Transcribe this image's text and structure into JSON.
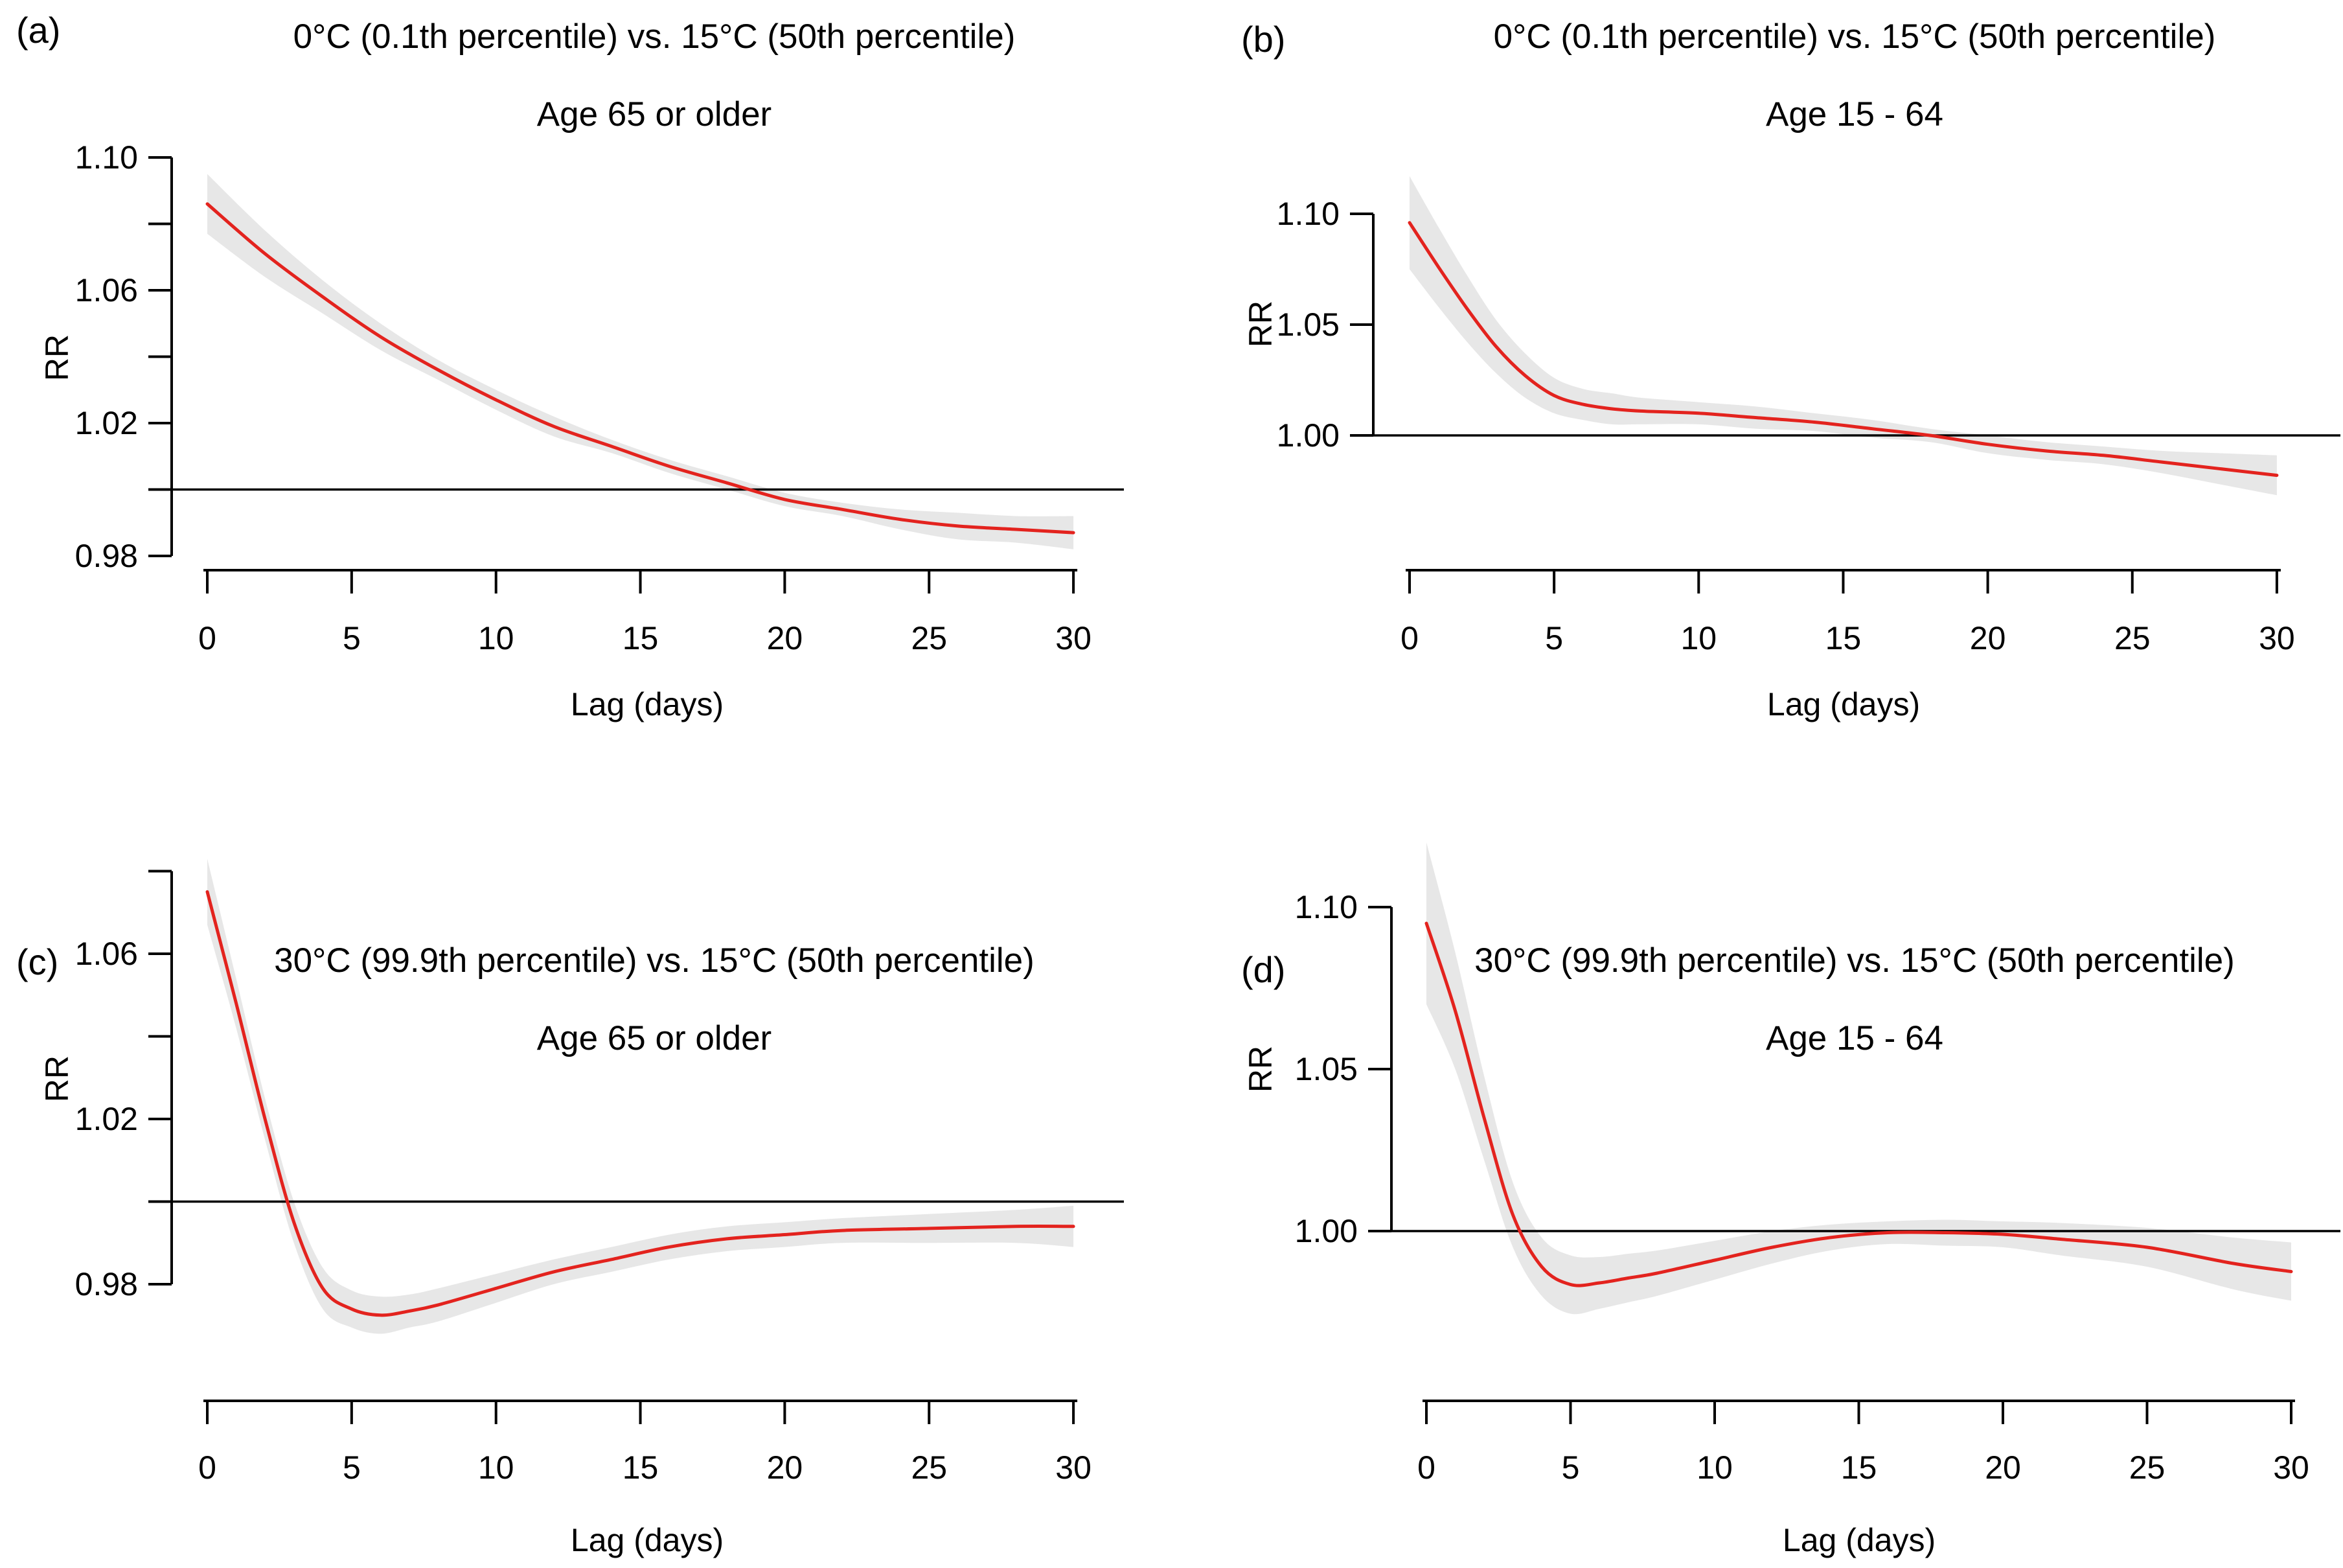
{
  "colors": {
    "curve": "#E3231E",
    "band": "#E7E7E7",
    "axis": "#000000",
    "ref_line": "#000000"
  },
  "chart_data": [
    {
      "id": "a",
      "panel_label": "(a)",
      "type": "line",
      "title": "0°C (0.1th percentile) vs. 15°C (50th percentile)",
      "subtitle": "Age 65 or older",
      "xlabel": "Lag (days)",
      "ylabel": "RR",
      "xlim": [
        0,
        30
      ],
      "x_ticks": [
        0,
        5,
        10,
        15,
        20,
        25,
        30
      ],
      "y_axis_range": [
        0.98,
        1.1
      ],
      "y_ticks": [
        {
          "v": 0.98,
          "label": "0.98"
        },
        {
          "v": 1.0,
          "label": ""
        },
        {
          "v": 1.02,
          "label": "1.02"
        },
        {
          "v": 1.04,
          "label": ""
        },
        {
          "v": 1.06,
          "label": "1.06"
        },
        {
          "v": 1.08,
          "label": ""
        },
        {
          "v": 1.1,
          "label": "1.10"
        }
      ],
      "ref_line": 1.0,
      "legend": "none",
      "x": [
        0,
        2,
        4,
        6,
        8,
        10,
        12,
        14,
        16,
        18,
        20,
        22,
        24,
        26,
        28,
        30
      ],
      "series": [
        {
          "name": "RR estimate",
          "values": [
            1.086,
            1.071,
            1.058,
            1.046,
            1.036,
            1.027,
            1.019,
            1.013,
            1.007,
            1.002,
            0.997,
            0.994,
            0.991,
            0.989,
            0.988,
            0.987
          ]
        },
        {
          "name": "CI upper",
          "values": [
            1.095,
            1.078,
            1.063,
            1.05,
            1.039,
            1.03,
            1.022,
            1.015,
            1.009,
            1.004,
            0.999,
            0.996,
            0.994,
            0.993,
            0.992,
            0.992
          ]
        },
        {
          "name": "CI lower",
          "values": [
            1.077,
            1.064,
            1.053,
            1.042,
            1.033,
            1.024,
            1.016,
            1.011,
            1.005,
            1.0,
            0.995,
            0.992,
            0.988,
            0.985,
            0.984,
            0.982
          ]
        }
      ]
    },
    {
      "id": "b",
      "panel_label": "(b)",
      "type": "line",
      "title": "0°C (0.1th percentile) vs. 15°C (50th percentile)",
      "subtitle": "Age 15 - 64",
      "xlabel": "Lag (days)",
      "ylabel": "RR",
      "xlim": [
        0,
        30
      ],
      "x_ticks": [
        0,
        5,
        10,
        15,
        20,
        25,
        30
      ],
      "y_axis_range": [
        1.0,
        1.1
      ],
      "y_ticks": [
        {
          "v": 1.0,
          "label": "1.00"
        },
        {
          "v": 1.05,
          "label": "1.05"
        },
        {
          "v": 1.1,
          "label": "1.10"
        }
      ],
      "ref_line": 1.0,
      "legend": "none",
      "x": [
        0,
        1,
        2,
        3,
        4,
        5,
        6,
        7,
        8,
        10,
        12,
        14,
        16,
        18,
        20,
        22,
        24,
        26,
        28,
        30
      ],
      "series": [
        {
          "name": "RR estimate",
          "values": [
            1.096,
            1.076,
            1.057,
            1.04,
            1.027,
            1.018,
            1.014,
            1.012,
            1.011,
            1.01,
            1.008,
            1.006,
            1.003,
            1.0,
            0.996,
            0.993,
            0.991,
            0.988,
            0.985,
            0.982
          ]
        },
        {
          "name": "CI upper",
          "values": [
            1.117,
            1.094,
            1.072,
            1.052,
            1.037,
            1.026,
            1.021,
            1.019,
            1.017,
            1.015,
            1.013,
            1.01,
            1.007,
            1.003,
            1.0,
            0.997,
            0.995,
            0.993,
            0.992,
            0.991
          ]
        },
        {
          "name": "CI lower",
          "values": [
            1.075,
            1.058,
            1.042,
            1.028,
            1.017,
            1.01,
            1.007,
            1.005,
            1.005,
            1.005,
            1.003,
            1.002,
            0.999,
            0.997,
            0.992,
            0.989,
            0.987,
            0.983,
            0.978,
            0.973
          ]
        }
      ]
    },
    {
      "id": "c",
      "panel_label": "(c)",
      "type": "line",
      "title": "30°C (99.9th percentile) vs. 15°C (50th percentile)",
      "subtitle": "Age 65 or older",
      "xlabel": "Lag (days)",
      "ylabel": "RR",
      "xlim": [
        0,
        30
      ],
      "x_ticks": [
        0,
        5,
        10,
        15,
        20,
        25,
        30
      ],
      "y_axis_range": [
        0.98,
        1.08
      ],
      "y_ticks": [
        {
          "v": 0.98,
          "label": "0.98"
        },
        {
          "v": 1.0,
          "label": ""
        },
        {
          "v": 1.02,
          "label": "1.02"
        },
        {
          "v": 1.04,
          "label": ""
        },
        {
          "v": 1.06,
          "label": "1.06"
        },
        {
          "v": 1.08,
          "label": ""
        }
      ],
      "ref_line": 1.0,
      "legend": "none",
      "x": [
        0,
        1,
        2,
        3,
        4,
        5,
        6,
        7,
        8,
        10,
        12,
        14,
        16,
        18,
        20,
        22,
        25,
        28,
        30
      ],
      "series": [
        {
          "name": "RR estimate",
          "values": [
            1.075,
            1.048,
            1.02,
            0.995,
            0.979,
            0.974,
            0.9725,
            0.9735,
            0.975,
            0.979,
            0.983,
            0.986,
            0.989,
            0.991,
            0.992,
            0.993,
            0.9935,
            0.994,
            0.994
          ]
        },
        {
          "name": "CI upper",
          "values": [
            1.083,
            1.054,
            1.025,
            1.0,
            0.984,
            0.9785,
            0.977,
            0.9775,
            0.979,
            0.9825,
            0.986,
            0.989,
            0.992,
            0.994,
            0.995,
            0.996,
            0.997,
            0.998,
            0.999
          ]
        },
        {
          "name": "CI lower",
          "values": [
            1.067,
            1.042,
            1.015,
            0.99,
            0.974,
            0.9695,
            0.968,
            0.9695,
            0.971,
            0.9755,
            0.98,
            0.983,
            0.986,
            0.988,
            0.989,
            0.99,
            0.99,
            0.99,
            0.989
          ]
        }
      ]
    },
    {
      "id": "d",
      "panel_label": "(d)",
      "type": "line",
      "title": "30°C (99.9th percentile) vs. 15°C (50th percentile)",
      "subtitle": "Age 15 - 64",
      "xlabel": "Lag (days)",
      "ylabel": "RR",
      "xlim": [
        0,
        30
      ],
      "x_ticks": [
        0,
        5,
        10,
        15,
        20,
        25,
        30
      ],
      "y_axis_range": [
        1.0,
        1.1
      ],
      "y_ticks": [
        {
          "v": 1.0,
          "label": "1.00"
        },
        {
          "v": 1.05,
          "label": "1.05"
        },
        {
          "v": 1.1,
          "label": "1.10"
        }
      ],
      "ref_line": 1.0,
      "legend": "none",
      "x": [
        0,
        1,
        2,
        3,
        4,
        5,
        6,
        7,
        8,
        10,
        12,
        14,
        16,
        18,
        20,
        22,
        25,
        28,
        30
      ],
      "series": [
        {
          "name": "RR estimate",
          "values": [
            1.095,
            1.068,
            1.035,
            1.005,
            0.989,
            0.9835,
            0.984,
            0.9855,
            0.987,
            0.991,
            0.995,
            0.998,
            0.9995,
            0.9995,
            0.999,
            0.9975,
            0.995,
            0.99,
            0.9875
          ]
        },
        {
          "name": "CI upper",
          "values": [
            1.12,
            1.086,
            1.048,
            1.015,
            0.998,
            0.9925,
            0.992,
            0.993,
            0.994,
            0.997,
            1.0,
            1.002,
            1.003,
            1.0035,
            1.003,
            1.0025,
            1.001,
            0.998,
            0.9965
          ]
        },
        {
          "name": "CI lower",
          "values": [
            1.07,
            1.05,
            1.022,
            0.995,
            0.98,
            0.9745,
            0.976,
            0.978,
            0.98,
            0.985,
            0.99,
            0.994,
            0.996,
            0.9955,
            0.995,
            0.9925,
            0.989,
            0.982,
            0.9785
          ]
        }
      ]
    }
  ]
}
